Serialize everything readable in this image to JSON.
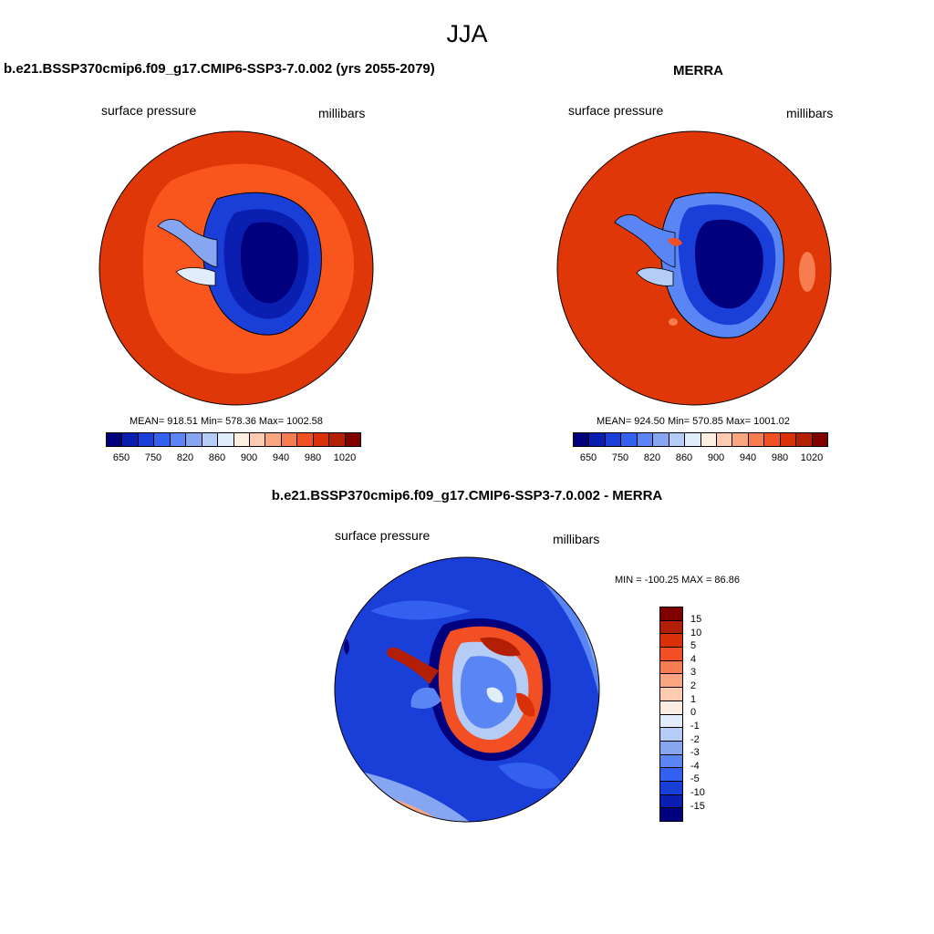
{
  "title": "JJA",
  "panels": [
    {
      "title": "b.e21.BSSP370cmip6.f09_g17.CMIP6-SSP3-7.0.002 (yrs 2055-2079)",
      "left_label": "surface pressure",
      "right_label": "millibars",
      "stats": "MEAN= 918.51  Min= 578.36  Max= 1002.58"
    },
    {
      "title": "MERRA",
      "left_label": "surface pressure",
      "right_label": "millibars",
      "stats": "MEAN= 924.50  Min= 570.85  Max= 1001.02"
    },
    {
      "title": "b.e21.BSSP370cmip6.f09_g17.CMIP6-SSP3-7.0.002 - MERRA",
      "left_label": "surface pressure",
      "right_label": "millibars",
      "stats": "MIN = -100.25 MAX =  86.86"
    }
  ],
  "colorbar_abs": {
    "colors": [
      "#00007f",
      "#0a1fb0",
      "#1a3fd8",
      "#3360ee",
      "#5a85f5",
      "#86a6f2",
      "#b5cdf6",
      "#e1edfb",
      "#fdeee2",
      "#fccbb0",
      "#f9a680",
      "#f77c50",
      "#f24f24",
      "#d93008",
      "#b21f04",
      "#800000"
    ],
    "tick_labels": [
      "650",
      "750",
      "820",
      "860",
      "900",
      "940",
      "980",
      "1020"
    ]
  },
  "colorbar_diff": {
    "colors": [
      "#00007f",
      "#0a1fb0",
      "#1a3fd8",
      "#3360ee",
      "#5a85f5",
      "#86a6f2",
      "#b5cdf6",
      "#e1edfb",
      "#fdeee2",
      "#fccbb0",
      "#f9a680",
      "#f77c50",
      "#f24f24",
      "#d93008",
      "#b21f04",
      "#800000"
    ],
    "tick_labels": [
      "15",
      "10",
      "5",
      "4",
      "3",
      "2",
      "1",
      "0",
      "-1",
      "-2",
      "-3",
      "-4",
      "-5",
      "-10",
      "-15"
    ]
  },
  "map_colors": {
    "ocean_dark": "#e03708",
    "ocean_light": "#f9561e",
    "ice_low": "#00007f",
    "ice_mid": "#0a1fb0",
    "ice_edge": "#3360ee",
    "diff_ocean": "#1a3fd8",
    "diff_light": "#5a85f5",
    "diff_warm": "#f9a680"
  }
}
